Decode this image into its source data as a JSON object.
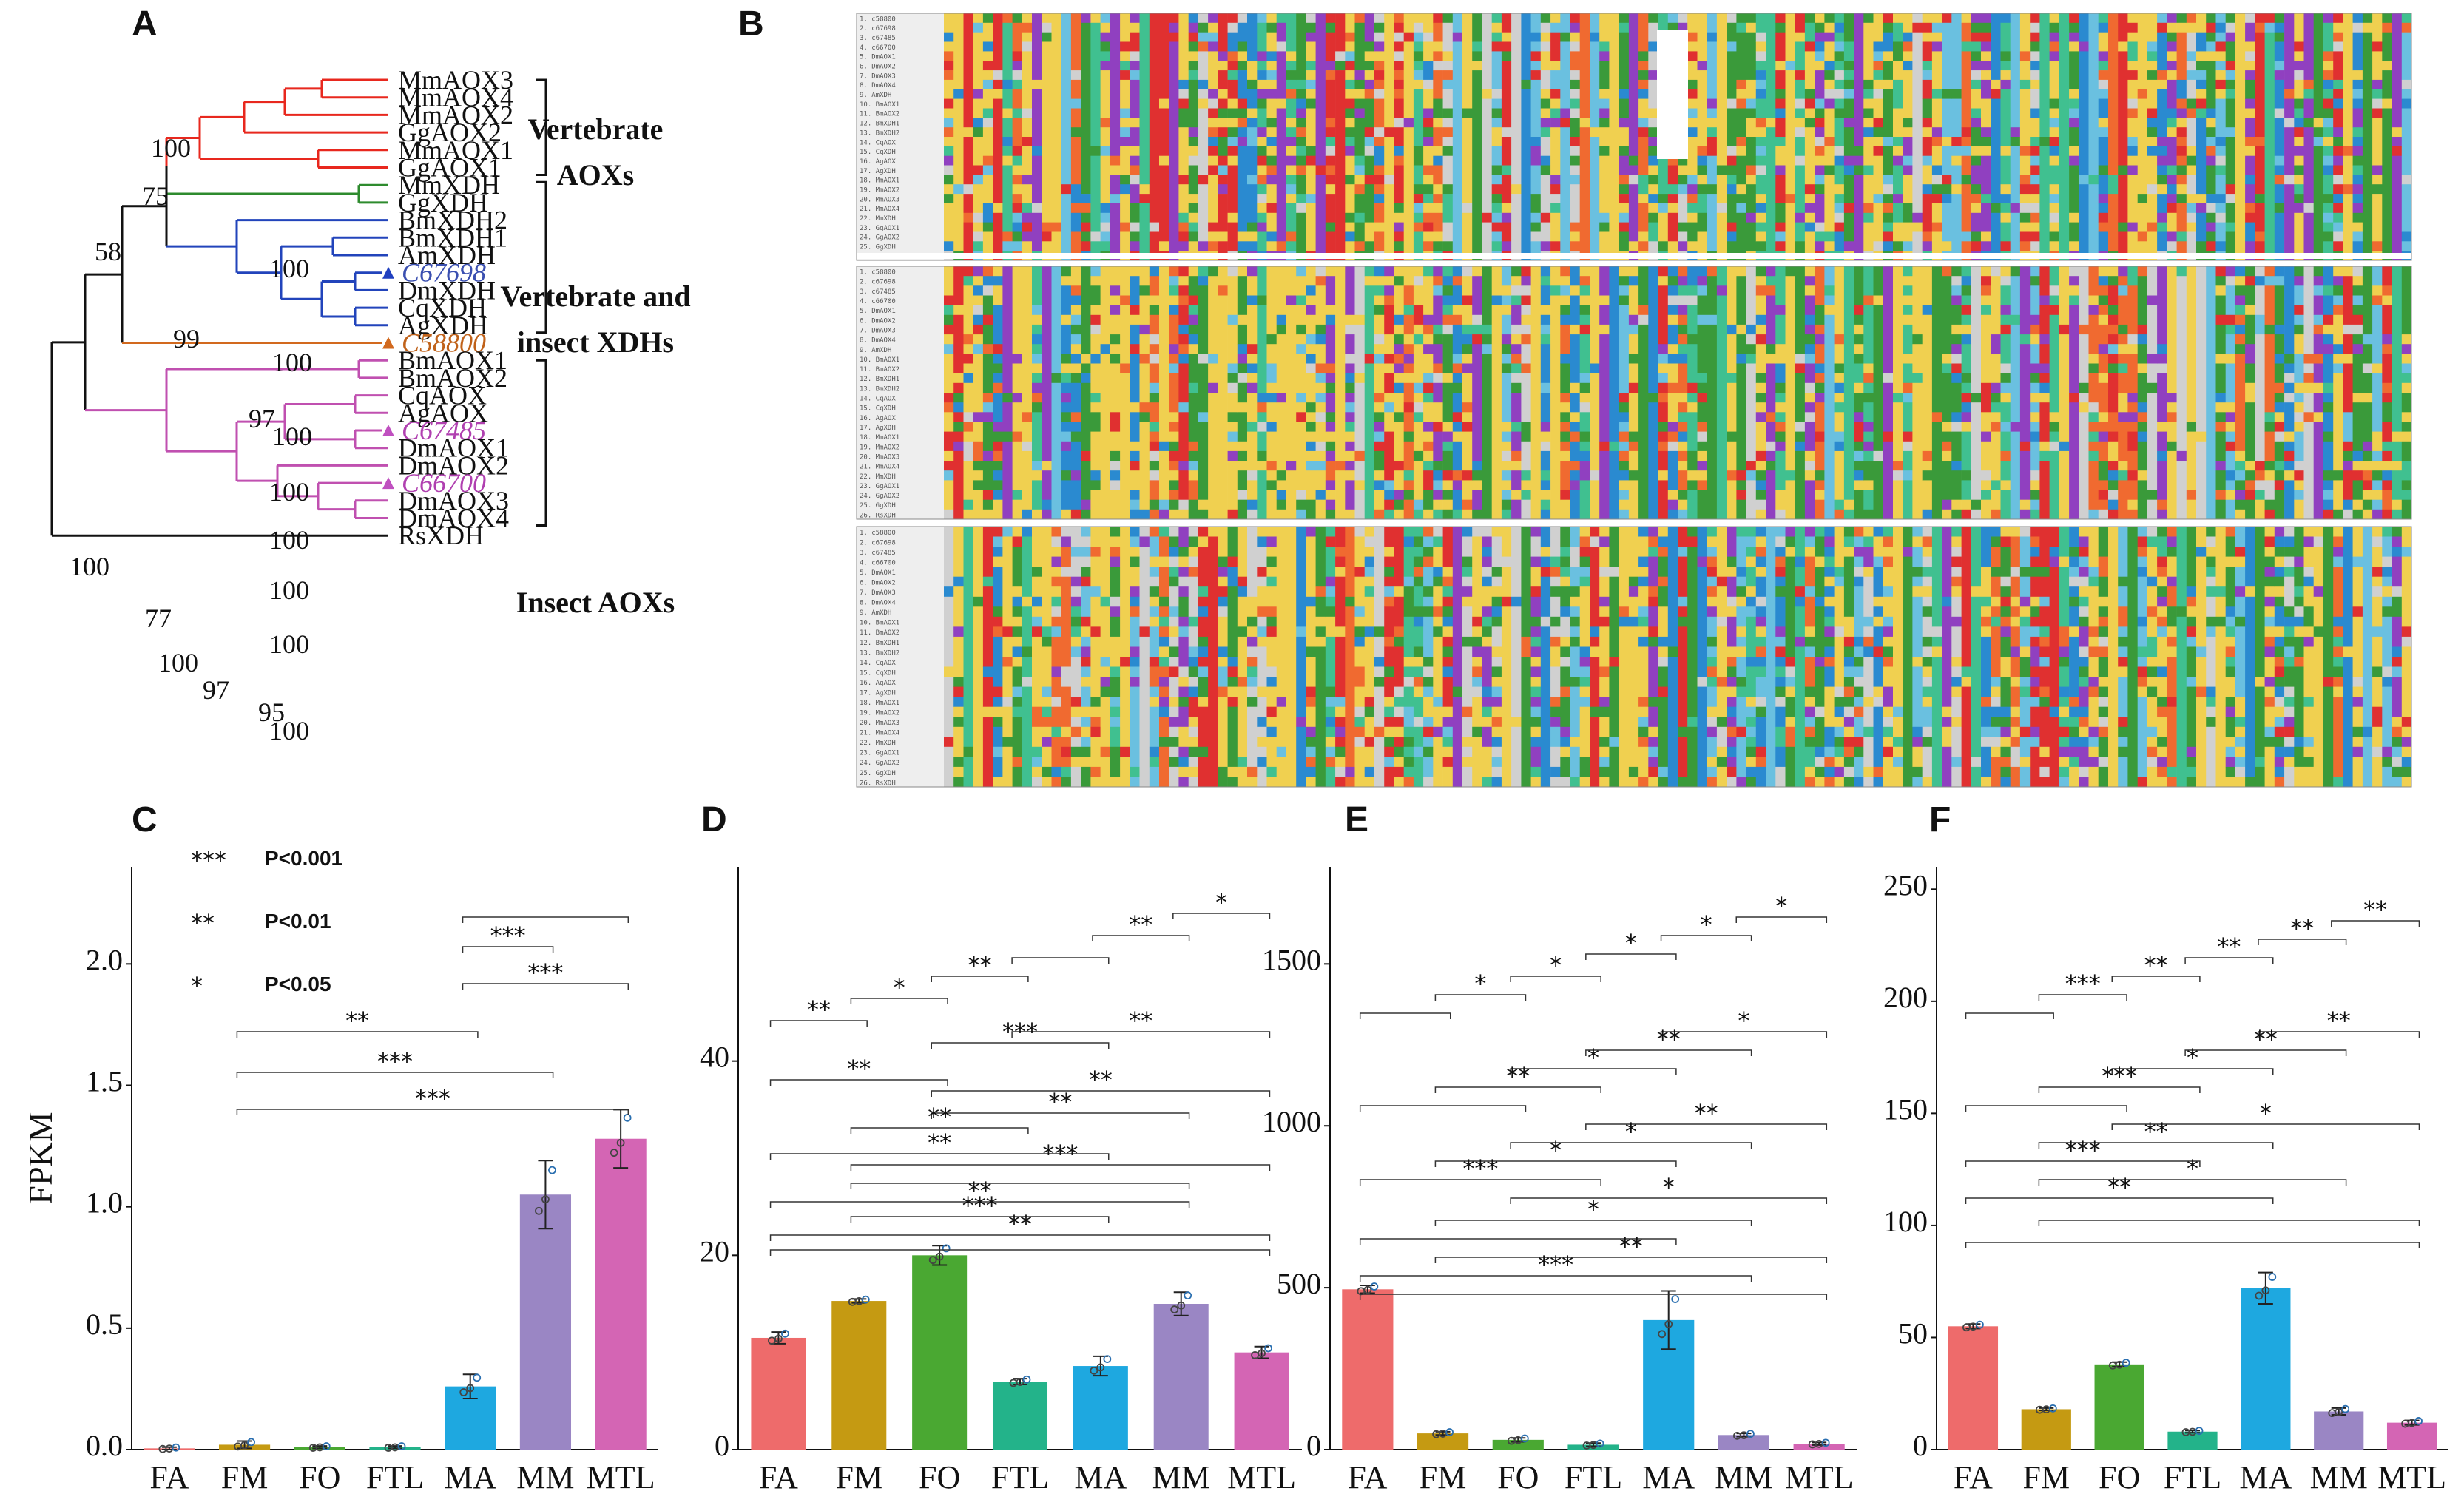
{
  "panels": {
    "a": "A",
    "b": "B",
    "c": "C",
    "d": "D",
    "e": "E",
    "f": "F"
  },
  "tree": {
    "taxa": [
      {
        "name": "MmAOX3",
        "italic": false,
        "color": "#111111",
        "marker": ""
      },
      {
        "name": "MmAOX4",
        "italic": false,
        "color": "#111111",
        "marker": ""
      },
      {
        "name": "MmAOX2",
        "italic": false,
        "color": "#111111",
        "marker": ""
      },
      {
        "name": "GgAOX2",
        "italic": false,
        "color": "#111111",
        "marker": ""
      },
      {
        "name": "MmAOX1",
        "italic": false,
        "color": "#111111",
        "marker": ""
      },
      {
        "name": "GgAOX1",
        "italic": false,
        "color": "#111111",
        "marker": ""
      },
      {
        "name": "MmXDH",
        "italic": false,
        "color": "#111111",
        "marker": ""
      },
      {
        "name": "GgXDH",
        "italic": false,
        "color": "#111111",
        "marker": ""
      },
      {
        "name": "BmXDH2",
        "italic": false,
        "color": "#111111",
        "marker": ""
      },
      {
        "name": "BmXDH1",
        "italic": false,
        "color": "#111111",
        "marker": ""
      },
      {
        "name": "AmXDH",
        "italic": false,
        "color": "#111111",
        "marker": ""
      },
      {
        "name": "C67698",
        "italic": true,
        "color": "#3a4fb0",
        "marker": "#2040c0"
      },
      {
        "name": "DmXDH",
        "italic": false,
        "color": "#111111",
        "marker": ""
      },
      {
        "name": "CqXDH",
        "italic": false,
        "color": "#111111",
        "marker": ""
      },
      {
        "name": "AgXDH",
        "italic": false,
        "color": "#111111",
        "marker": ""
      },
      {
        "name": "C58800",
        "italic": true,
        "color": "#c0621a",
        "marker": "#d2691e"
      },
      {
        "name": "BmAOX1",
        "italic": false,
        "color": "#111111",
        "marker": ""
      },
      {
        "name": "BmAOX2",
        "italic": false,
        "color": "#111111",
        "marker": ""
      },
      {
        "name": "CqAOX",
        "italic": false,
        "color": "#111111",
        "marker": ""
      },
      {
        "name": "AgAOX",
        "italic": false,
        "color": "#111111",
        "marker": ""
      },
      {
        "name": "C67485",
        "italic": true,
        "color": "#b040b0",
        "marker": "#c050c0"
      },
      {
        "name": "DmAOX1",
        "italic": false,
        "color": "#111111",
        "marker": ""
      },
      {
        "name": "DmAOX2",
        "italic": false,
        "color": "#111111",
        "marker": ""
      },
      {
        "name": "C66700",
        "italic": true,
        "color": "#b040b0",
        "marker": "#c050c0"
      },
      {
        "name": "DmAOX3",
        "italic": false,
        "color": "#111111",
        "marker": ""
      },
      {
        "name": "DmAOX4",
        "italic": false,
        "color": "#111111",
        "marker": ""
      },
      {
        "name": "RsXDH",
        "italic": false,
        "color": "#111111",
        "marker": ""
      }
    ],
    "bootstrap": [
      "100",
      "75",
      "58",
      "100",
      "99",
      "100",
      "97",
      "100",
      "100",
      "100",
      "100",
      "100",
      "77",
      "100",
      "100",
      "97",
      "95",
      "100"
    ],
    "groups": [
      {
        "lines": [
          "Vertebrate",
          "AOXs"
        ]
      },
      {
        "lines": [
          "Vertebrate and",
          "insect XDHs"
        ]
      },
      {
        "lines": [
          "Insect AOXs"
        ]
      }
    ],
    "colors": {
      "vert_aox": "#e8281e",
      "vert_xdh": "#2e8b2e",
      "xdh": "#2244bb",
      "c58800": "#d2691e",
      "insect_aox": "#c050b0",
      "root": "#111111"
    }
  },
  "alignment": {
    "sequences": [
      "1. c58800",
      "2. c67698",
      "3. c67485",
      "4. c66700",
      "5. DmAOX1",
      "6. DmAOX2",
      "7. DmAOX3",
      "8. DmAOX4",
      "9. AmXDH",
      "10. BmAOX1",
      "11. BmAOX2",
      "12. BmXDH1",
      "13. BmXDH2",
      "14. CqAOX",
      "15. CqXDH",
      "16. AgAOX",
      "17. AgXDH",
      "18. MmAOX1",
      "19. MmAOX2",
      "20. MmAOX3",
      "21. MmAOX4",
      "22. MmXDH",
      "23. GgAOX1",
      "24. GgAOX2",
      "25. GgXDH",
      "26. RsXDH"
    ],
    "residue_colors": [
      "#f0d050",
      "#f0d050",
      "#f0d050",
      "#3a9a3a",
      "#3a9a3a",
      "#6ac0e0",
      "#2a8ad0",
      "#9040c0",
      "#e03030",
      "#f06a30",
      "#d0d0d0",
      "#40c090"
    ]
  },
  "legend": [
    {
      "stars": "***",
      "label": "P<0.001"
    },
    {
      "stars": "**",
      "label": "P<0.01"
    },
    {
      "stars": "*",
      "label": "P<0.05"
    }
  ],
  "ylabel": "FPKM",
  "categories": [
    "FA",
    "FM",
    "FO",
    "FTL",
    "MA",
    "MM",
    "MTL"
  ],
  "bar_colors": [
    "#ee6b6b",
    "#c59a12",
    "#4aa832",
    "#23b38a",
    "#1ea8e0",
    "#9a86c4",
    "#d465b4"
  ],
  "chart_data": [
    {
      "type": "bar",
      "panel": "C",
      "categories": [
        "FA",
        "FM",
        "FO",
        "FTL",
        "MA",
        "MM",
        "MTL"
      ],
      "values": [
        0.005,
        0.02,
        0.01,
        0.01,
        0.26,
        1.05,
        1.28
      ],
      "errors": [
        0.005,
        0.015,
        0.005,
        0.005,
        0.05,
        0.14,
        0.12
      ],
      "ylim": [
        0,
        2.4
      ],
      "yticks": [
        0.0,
        0.5,
        1.0,
        1.5,
        2.0
      ],
      "ytick_labels": [
        "0.0",
        "0.5",
        "1.0",
        "1.5",
        "2.0"
      ],
      "ylabel": "FPKM",
      "significance": [
        {
          "from": 4,
          "to": 6,
          "stars": ""
        },
        {
          "from": 4,
          "to": 5,
          "stars": "***"
        },
        {
          "from": 4,
          "to": 6,
          "stars": "***"
        },
        {
          "from": 1,
          "to": 4,
          "stars": "**"
        },
        {
          "from": 1,
          "to": 5,
          "stars": "***"
        },
        {
          "from": 1,
          "to": 6,
          "stars": "***"
        }
      ]
    },
    {
      "type": "bar",
      "panel": "D",
      "categories": [
        "FA",
        "FM",
        "FO",
        "FTL",
        "MA",
        "MM",
        "MTL"
      ],
      "values": [
        11.5,
        15.3,
        20.0,
        7.0,
        8.6,
        15.0,
        10.0
      ],
      "errors": [
        0.6,
        0.2,
        1.0,
        0.3,
        1.0,
        1.2,
        0.6
      ],
      "ylim": [
        0,
        60
      ],
      "yticks": [
        0,
        20,
        40
      ],
      "ytick_labels": [
        "0",
        "20",
        "40"
      ],
      "ylabel": "",
      "significance": [
        {
          "from": 5,
          "to": 6,
          "stars": "*"
        },
        {
          "from": 4,
          "to": 5,
          "stars": "**"
        },
        {
          "from": 3,
          "to": 4,
          "stars": ""
        },
        {
          "from": 2,
          "to": 3,
          "stars": "**"
        },
        {
          "from": 1,
          "to": 2,
          "stars": "*"
        },
        {
          "from": 0,
          "to": 1,
          "stars": "**"
        },
        {
          "from": 3,
          "to": 6,
          "stars": "**"
        },
        {
          "from": 2,
          "to": 4,
          "stars": "***"
        },
        {
          "from": 0,
          "to": 2,
          "stars": "**"
        },
        {
          "from": 2,
          "to": 6,
          "stars": "**"
        },
        {
          "from": 2,
          "to": 5,
          "stars": "**"
        },
        {
          "from": 1,
          "to": 3,
          "stars": "**"
        },
        {
          "from": 0,
          "to": 4,
          "stars": "**"
        },
        {
          "from": 1,
          "to": 6,
          "stars": "***"
        },
        {
          "from": 1,
          "to": 5,
          "stars": ""
        },
        {
          "from": 0,
          "to": 5,
          "stars": "**"
        },
        {
          "from": 1,
          "to": 4,
          "stars": "***"
        },
        {
          "from": 0,
          "to": 6,
          "stars": "**"
        },
        {
          "from": 0,
          "to": 6,
          "stars": ""
        }
      ]
    },
    {
      "type": "bar",
      "panel": "E",
      "categories": [
        "FA",
        "FM",
        "FO",
        "FTL",
        "MA",
        "MM",
        "MTL"
      ],
      "values": [
        495,
        50,
        30,
        15,
        400,
        45,
        18
      ],
      "errors": [
        12,
        5,
        6,
        5,
        90,
        5,
        4
      ],
      "ylim": [
        0,
        1800
      ],
      "yticks": [
        0,
        500,
        1000,
        1500
      ],
      "ytick_labels": [
        "0",
        "500",
        "1000",
        "1500"
      ],
      "ylabel": "",
      "significance": [
        {
          "from": 5,
          "to": 6,
          "stars": "*"
        },
        {
          "from": 4,
          "to": 5,
          "stars": "*"
        },
        {
          "from": 3,
          "to": 4,
          "stars": "*"
        },
        {
          "from": 2,
          "to": 3,
          "stars": "*"
        },
        {
          "from": 1,
          "to": 2,
          "stars": "*"
        },
        {
          "from": 0,
          "to": 1,
          "stars": ""
        },
        {
          "from": 4,
          "to": 6,
          "stars": "*"
        },
        {
          "from": 3,
          "to": 5,
          "stars": "**"
        },
        {
          "from": 2,
          "to": 4,
          "stars": "*"
        },
        {
          "from": 1,
          "to": 3,
          "stars": "**"
        },
        {
          "from": 0,
          "to": 2,
          "stars": ""
        },
        {
          "from": 3,
          "to": 6,
          "stars": "**"
        },
        {
          "from": 2,
          "to": 5,
          "stars": "*"
        },
        {
          "from": 1,
          "to": 4,
          "stars": "*"
        },
        {
          "from": 0,
          "to": 3,
          "stars": "***"
        },
        {
          "from": 2,
          "to": 6,
          "stars": "*"
        },
        {
          "from": 1,
          "to": 5,
          "stars": "*"
        },
        {
          "from": 0,
          "to": 4,
          "stars": ""
        },
        {
          "from": 1,
          "to": 6,
          "stars": "**"
        },
        {
          "from": 0,
          "to": 5,
          "stars": "***"
        },
        {
          "from": 0,
          "to": 6,
          "stars": ""
        }
      ]
    },
    {
      "type": "bar",
      "panel": "F",
      "categories": [
        "FA",
        "FM",
        "FO",
        "FTL",
        "MA",
        "MM",
        "MTL"
      ],
      "values": [
        55,
        18,
        38,
        8,
        72,
        17,
        12
      ],
      "errors": [
        1,
        0.5,
        1,
        0.5,
        7,
        1.5,
        1
      ],
      "ylim": [
        0,
        260
      ],
      "yticks": [
        0,
        50,
        100,
        150,
        200,
        250
      ],
      "ytick_labels": [
        "0",
        "50",
        "100",
        "150",
        "200",
        "250"
      ],
      "ylabel": "",
      "significance": [
        {
          "from": 5,
          "to": 6,
          "stars": "**"
        },
        {
          "from": 4,
          "to": 5,
          "stars": "**"
        },
        {
          "from": 3,
          "to": 4,
          "stars": "**"
        },
        {
          "from": 2,
          "to": 3,
          "stars": "**"
        },
        {
          "from": 1,
          "to": 2,
          "stars": "***"
        },
        {
          "from": 0,
          "to": 1,
          "stars": ""
        },
        {
          "from": 4,
          "to": 6,
          "stars": "**"
        },
        {
          "from": 3,
          "to": 5,
          "stars": "**"
        },
        {
          "from": 2,
          "to": 4,
          "stars": "*"
        },
        {
          "from": 1,
          "to": 3,
          "stars": "***"
        },
        {
          "from": 0,
          "to": 2,
          "stars": ""
        },
        {
          "from": 2,
          "to": 6,
          "stars": "*"
        },
        {
          "from": 1,
          "to": 4,
          "stars": "**"
        },
        {
          "from": 0,
          "to": 3,
          "stars": "***"
        },
        {
          "from": 1,
          "to": 5,
          "stars": "*"
        },
        {
          "from": 0,
          "to": 4,
          "stars": "**"
        },
        {
          "from": 1,
          "to": 6,
          "stars": ""
        },
        {
          "from": 0,
          "to": 6,
          "stars": ""
        }
      ]
    }
  ]
}
